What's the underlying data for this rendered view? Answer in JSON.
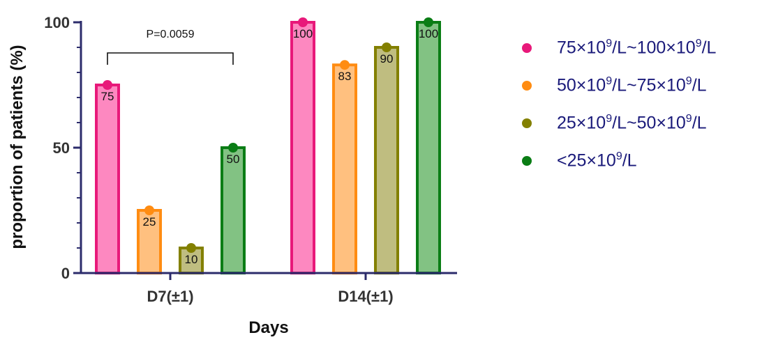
{
  "chart_data": {
    "type": "bar",
    "categories": [
      "D7(±1)",
      "D14(±1)"
    ],
    "series": [
      {
        "name": "75×10^9/L~100×10^9/L",
        "values": [
          75,
          100
        ],
        "color": "#e8197a",
        "fill": "#fd88c0",
        "data_labels": [
          "75",
          "100"
        ]
      },
      {
        "name": "50×10^9/L~75×10^9/L",
        "values": [
          25,
          83
        ],
        "color": "#ff8c12",
        "fill": "#ffc07f",
        "data_labels": [
          "25",
          "83"
        ]
      },
      {
        "name": "25×10^9/L~50×10^9/L",
        "values": [
          10,
          90
        ],
        "color": "#838000",
        "fill": "#bfbd80",
        "data_labels": [
          "10",
          "90"
        ]
      },
      {
        "name": "<25×10^9/L",
        "values": [
          50,
          100
        ],
        "color": "#0a7d15",
        "fill": "#82c283",
        "data_labels": [
          "50",
          "100"
        ]
      }
    ],
    "xlabel": "Days",
    "ylabel": "proportion of patients (%)",
    "ylim": [
      0,
      100
    ],
    "yticks": [
      "0",
      "50",
      "100"
    ],
    "grid": false,
    "legend_position": "right",
    "annotation": {
      "text": "P=0.0059",
      "category": "D7(±1)",
      "from_series": 0,
      "to_series": 3
    }
  },
  "legend_labels": [
    {
      "pre": "75×10",
      "sup1": "9",
      "mid": "/L~100×10",
      "sup2": "9",
      "post": "/L"
    },
    {
      "pre": "50×10",
      "sup1": "9",
      "mid": "/L~75×10",
      "sup2": "9",
      "post": "/L"
    },
    {
      "pre": "25×10",
      "sup1": "9",
      "mid": "/L~50×10",
      "sup2": "9",
      "post": "/L"
    },
    {
      "pre": "<25×10",
      "sup1": "9",
      "mid": "/L",
      "sup2": "",
      "post": ""
    }
  ],
  "colors": {
    "axis": "#2b2b6b"
  }
}
